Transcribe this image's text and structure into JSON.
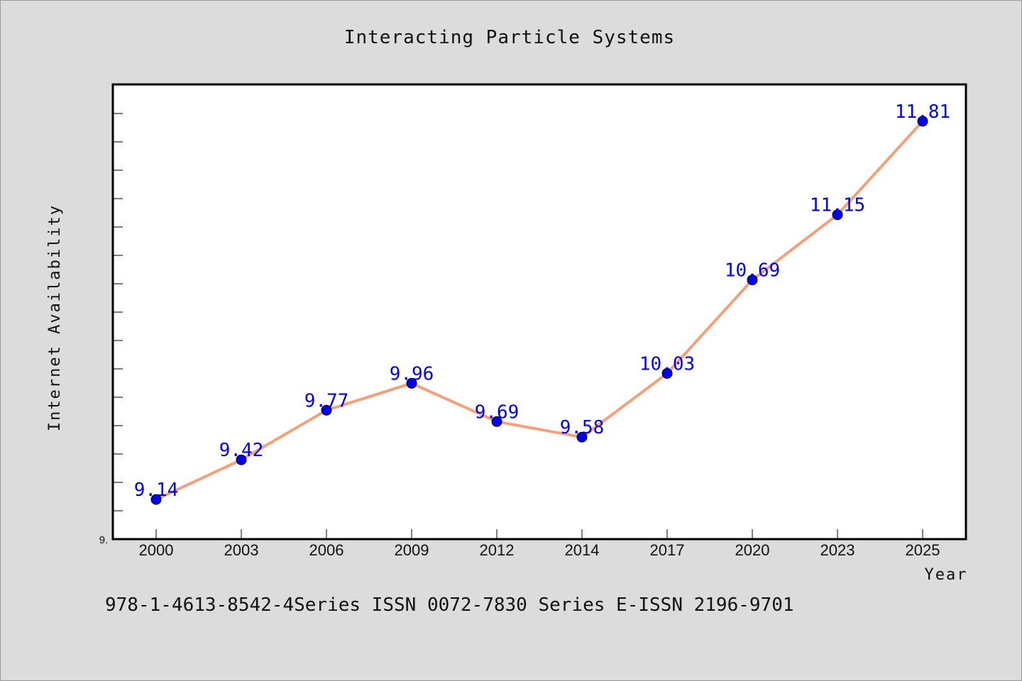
{
  "chart_data": {
    "type": "line",
    "title": "Interacting Particle Systems",
    "xlabel": "Year",
    "ylabel": "Internet Availability",
    "x": [
      "2000",
      "2003",
      "2006",
      "2009",
      "2012",
      "2014",
      "2017",
      "2020",
      "2023",
      "2025"
    ],
    "series": [
      {
        "values": [
          9.14,
          9.42,
          9.77,
          9.96,
          9.69,
          9.58,
          10.03,
          10.69,
          11.15,
          11.81
        ]
      }
    ],
    "data_labels": [
      "9.14",
      "9.42",
      "9.77",
      "9.96",
      "9.69",
      "9.58",
      "10.03",
      "10.69",
      "11.15",
      "11.81"
    ],
    "ytick_labels": [
      "9."
    ],
    "ylim": [
      8.86,
      12.07
    ],
    "grid": false,
    "line_color": "#f4a07a",
    "marker_color": "#0000ee",
    "label_color": "#0000ee"
  },
  "footer": {
    "text": "978-1-4613-8542-4Series ISSN 0072-7830 Series E-ISSN 2196-9701"
  }
}
